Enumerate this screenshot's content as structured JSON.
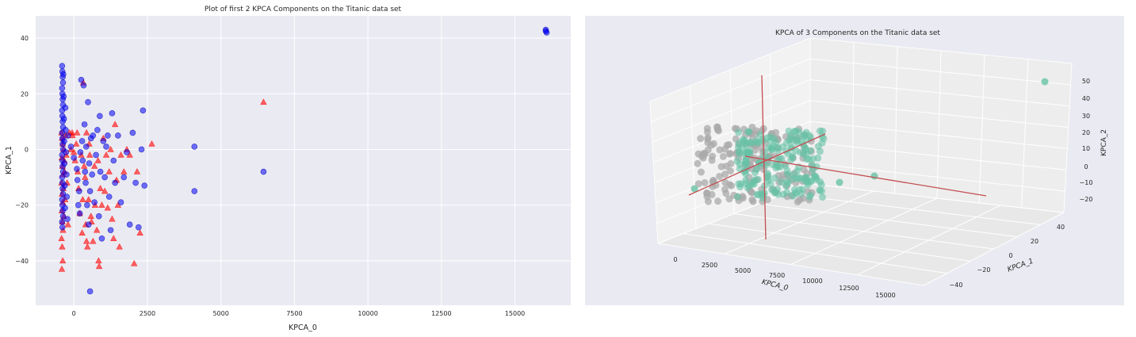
{
  "chart_data": [
    {
      "type": "scatter",
      "title": "Plot of first 2 KPCA Components on the Titanic data set",
      "xlabel": "KPCA_0",
      "ylabel": "KPCA_1",
      "xlim": [
        -1300,
        16900
      ],
      "ylim": [
        -56,
        48
      ],
      "xticks": [
        0,
        2500,
        5000,
        7500,
        10000,
        12500,
        15000
      ],
      "yticks": [
        -40,
        -20,
        0,
        20,
        40
      ],
      "grid": true,
      "series": [
        {
          "color": "#ff0000",
          "marker": "triangle",
          "points": [
            [
              -420,
              6
            ],
            [
              -400,
              4
            ],
            [
              -380,
              2
            ],
            [
              -410,
              -3
            ],
            [
              -390,
              -6
            ],
            [
              -370,
              -9
            ],
            [
              -420,
              -12
            ],
            [
              -400,
              -16
            ],
            [
              -380,
              -19
            ],
            [
              -410,
              -22
            ],
            [
              -390,
              -26
            ],
            [
              -370,
              -29
            ],
            [
              -420,
              -32
            ],
            [
              -400,
              -35
            ],
            [
              -380,
              -40
            ],
            [
              -410,
              -43
            ],
            [
              -350,
              0
            ],
            [
              -330,
              -4
            ],
            [
              -360,
              -14
            ],
            [
              -340,
              -24
            ],
            [
              -320,
              -8
            ],
            [
              -300,
              -18
            ],
            [
              -280,
              5
            ],
            [
              -260,
              -2
            ],
            [
              -230,
              -12
            ],
            [
              -200,
              -27
            ],
            [
              -150,
              6
            ],
            [
              -100,
              0
            ],
            [
              -50,
              5
            ],
            [
              0,
              -1
            ],
            [
              40,
              -4
            ],
            [
              80,
              2
            ],
            [
              130,
              -8
            ],
            [
              160,
              -14
            ],
            [
              200,
              -23
            ],
            [
              250,
              -2
            ],
            [
              280,
              -30
            ],
            [
              300,
              -18
            ],
            [
              320,
              24
            ],
            [
              350,
              -6
            ],
            [
              380,
              -10
            ],
            [
              400,
              -27
            ],
            [
              430,
              -33
            ],
            [
              460,
              -35
            ],
            [
              500,
              -18
            ],
            [
              540,
              -2
            ],
            [
              580,
              -24
            ],
            [
              600,
              -26
            ],
            [
              650,
              -33
            ],
            [
              700,
              -6
            ],
            [
              720,
              -20
            ],
            [
              780,
              -29
            ],
            [
              820,
              -4
            ],
            [
              860,
              -42
            ],
            [
              900,
              -14
            ],
            [
              950,
              -20
            ],
            [
              1000,
              4
            ],
            [
              1050,
              -15
            ],
            [
              1100,
              -2
            ],
            [
              1150,
              -21
            ],
            [
              1200,
              -8
            ],
            [
              1250,
              0
            ],
            [
              1300,
              -25
            ],
            [
              1350,
              -32
            ],
            [
              1400,
              9
            ],
            [
              1450,
              -11
            ],
            [
              1500,
              -20
            ],
            [
              1550,
              -35
            ],
            [
              1600,
              -2
            ],
            [
              1700,
              -8
            ],
            [
              1800,
              0
            ],
            [
              1900,
              -2
            ],
            [
              2050,
              -41
            ],
            [
              2150,
              -8
            ],
            [
              2250,
              -30
            ],
            [
              2650,
              2
            ],
            [
              6450,
              17
            ],
            [
              840,
              -40
            ],
            [
              520,
              2
            ],
            [
              430,
              6
            ],
            [
              110,
              6
            ],
            [
              -60,
              6
            ]
          ]
        },
        {
          "color": "#0000ff",
          "marker": "circle",
          "points": [
            [
              -400,
              30
            ],
            [
              -390,
              28
            ],
            [
              -380,
              26
            ],
            [
              -370,
              24
            ],
            [
              -400,
              22
            ],
            [
              -390,
              20
            ],
            [
              -380,
              18
            ],
            [
              -370,
              16
            ],
            [
              -400,
              14
            ],
            [
              -390,
              12
            ],
            [
              -380,
              10
            ],
            [
              -370,
              8
            ],
            [
              -400,
              6
            ],
            [
              -390,
              4
            ],
            [
              -380,
              2
            ],
            [
              -370,
              0
            ],
            [
              -400,
              -2
            ],
            [
              -390,
              -4
            ],
            [
              -380,
              -6
            ],
            [
              -370,
              -8
            ],
            [
              -400,
              -10
            ],
            [
              -390,
              -12
            ],
            [
              -380,
              -14
            ],
            [
              -370,
              -16
            ],
            [
              -400,
              -18
            ],
            [
              -390,
              -20
            ],
            [
              -380,
              -22
            ],
            [
              -370,
              -24
            ],
            [
              -400,
              -26
            ],
            [
              -390,
              -28
            ],
            [
              -360,
              27
            ],
            [
              -350,
              19
            ],
            [
              -340,
              11
            ],
            [
              -330,
              3
            ],
            [
              -320,
              -5
            ],
            [
              -310,
              -13
            ],
            [
              -300,
              -21
            ],
            [
              -290,
              15
            ],
            [
              -280,
              7
            ],
            [
              -270,
              -1
            ],
            [
              -250,
              -9
            ],
            [
              -240,
              -17
            ],
            [
              -220,
              -25
            ],
            [
              -200,
              5
            ],
            [
              -100,
              1
            ],
            [
              0,
              -3
            ],
            [
              100,
              -7
            ],
            [
              120,
              -11
            ],
            [
              150,
              -20
            ],
            [
              180,
              -15
            ],
            [
              200,
              -23
            ],
            [
              220,
              -1
            ],
            [
              250,
              25
            ],
            [
              280,
              3
            ],
            [
              300,
              -4
            ],
            [
              330,
              23
            ],
            [
              360,
              9
            ],
            [
              380,
              -8
            ],
            [
              400,
              -12
            ],
            [
              420,
              1
            ],
            [
              450,
              -20
            ],
            [
              480,
              17
            ],
            [
              500,
              -27
            ],
            [
              520,
              -5
            ],
            [
              550,
              -15
            ],
            [
              580,
              4
            ],
            [
              620,
              -9
            ],
            [
              650,
              5
            ],
            [
              700,
              -19
            ],
            [
              750,
              -2
            ],
            [
              800,
              7
            ],
            [
              850,
              -24
            ],
            [
              880,
              12
            ],
            [
              900,
              -8
            ],
            [
              950,
              -32
            ],
            [
              1000,
              3
            ],
            [
              1050,
              -10
            ],
            [
              1100,
              1
            ],
            [
              1150,
              5
            ],
            [
              1200,
              -17
            ],
            [
              1250,
              -29
            ],
            [
              1300,
              13
            ],
            [
              1350,
              -4
            ],
            [
              1400,
              -12
            ],
            [
              1500,
              5
            ],
            [
              1600,
              -19
            ],
            [
              1700,
              -10
            ],
            [
              1800,
              -1
            ],
            [
              1900,
              -27
            ],
            [
              2000,
              6
            ],
            [
              2100,
              -12
            ],
            [
              2200,
              -28
            ],
            [
              2300,
              0
            ],
            [
              2350,
              14
            ],
            [
              2400,
              -13
            ],
            [
              4100,
              1
            ],
            [
              4100,
              -15
            ],
            [
              6450,
              -8
            ],
            [
              550,
              -51
            ],
            [
              16050,
              43
            ],
            [
              16050,
              42.5
            ],
            [
              16080,
              42
            ]
          ]
        }
      ]
    },
    {
      "type": "scatter",
      "title": "KPCA of 3 Components on the Titanic data set",
      "xlabel": "KPCA_0",
      "ylabel": "KPCA_1",
      "zlabel": "KPCA_2",
      "xticks": [
        0,
        2500,
        5000,
        7500,
        10000,
        12500,
        15000
      ],
      "yticks": [
        -40,
        -20,
        0,
        20,
        40
      ],
      "zticks": [
        -20,
        -10,
        0,
        10,
        20,
        30,
        40,
        50
      ],
      "grid": true,
      "series": [
        {
          "color": "#aaaaaa",
          "marker": "circle",
          "points": []
        },
        {
          "color": "#66c2a5",
          "marker": "circle",
          "points": []
        }
      ]
    }
  ]
}
